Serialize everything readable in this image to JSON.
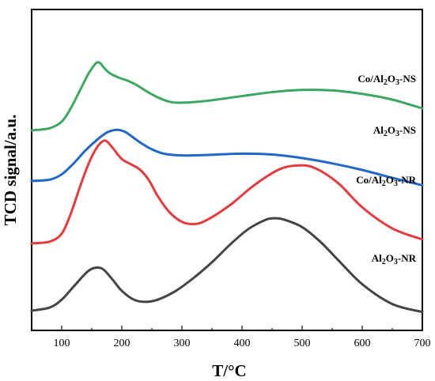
{
  "chart_data": {
    "type": "line",
    "xlabel": "T/°C",
    "ylabel": "TCD signal/a.u.",
    "xlim": [
      50,
      700
    ],
    "x_ticks": [
      100,
      200,
      300,
      400,
      500,
      600,
      700
    ],
    "x_tick_labels": [
      "100",
      "200",
      "300",
      "400",
      "500",
      "600",
      "700"
    ],
    "y_ticks_shown": false,
    "grid": false,
    "legend": "none (inline labels at right)",
    "series": [
      {
        "name": "Co/Al2O3-NS",
        "label_parts": [
          [
            "Co/Al",
            false
          ],
          [
            "2",
            true
          ],
          [
            "O",
            false
          ],
          [
            "3",
            true
          ],
          [
            "-NS",
            false
          ]
        ],
        "color": "#3aa860",
        "x": [
          50,
          80,
          100,
          115,
          130,
          145,
          155,
          160,
          165,
          170,
          180,
          195,
          210,
          225,
          240,
          260,
          280,
          300,
          340,
          400,
          450,
          500,
          550,
          600,
          650,
          700
        ],
        "y": [
          3.55,
          3.6,
          3.75,
          4.05,
          4.45,
          4.85,
          5.05,
          5.1,
          5.07,
          4.98,
          4.85,
          4.75,
          4.68,
          4.58,
          4.45,
          4.3,
          4.2,
          4.18,
          4.22,
          4.33,
          4.42,
          4.47,
          4.46,
          4.38,
          4.25,
          4.05
        ]
      },
      {
        "name": "Al2O3-NS",
        "label_parts": [
          [
            "Al",
            false
          ],
          [
            "2",
            true
          ],
          [
            "O",
            false
          ],
          [
            "3",
            true
          ],
          [
            "-NS",
            false
          ]
        ],
        "color": "#1f67c9",
        "x": [
          50,
          80,
          100,
          120,
          140,
          160,
          175,
          185,
          195,
          205,
          215,
          230,
          250,
          270,
          300,
          340,
          400,
          450,
          500,
          550,
          600,
          650,
          700
        ],
        "y": [
          2.4,
          2.43,
          2.55,
          2.8,
          3.1,
          3.35,
          3.5,
          3.55,
          3.56,
          3.52,
          3.43,
          3.28,
          3.12,
          3.02,
          2.98,
          2.99,
          3.02,
          3.0,
          2.92,
          2.8,
          2.65,
          2.47,
          2.3
        ]
      },
      {
        "name": "Co/Al2O3-NR",
        "label_parts": [
          [
            "Co/Al",
            false
          ],
          [
            "2",
            true
          ],
          [
            "O",
            false
          ],
          [
            "3",
            true
          ],
          [
            "-NR",
            false
          ]
        ],
        "color": "#e63a3e",
        "x": [
          50,
          80,
          100,
          115,
          130,
          145,
          158,
          168,
          175,
          185,
          200,
          215,
          230,
          245,
          260,
          280,
          300,
          320,
          340,
          380,
          420,
          460,
          490,
          520,
          560,
          600,
          650,
          700
        ],
        "y": [
          0.98,
          1.02,
          1.2,
          1.65,
          2.25,
          2.8,
          3.15,
          3.3,
          3.3,
          3.15,
          2.9,
          2.78,
          2.66,
          2.42,
          2.05,
          1.68,
          1.47,
          1.42,
          1.5,
          1.85,
          2.3,
          2.65,
          2.75,
          2.7,
          2.35,
          1.8,
          1.32,
          1.07
        ]
      },
      {
        "name": "Al2O3-NR",
        "label_parts": [
          [
            "Al",
            false
          ],
          [
            "2",
            true
          ],
          [
            "O",
            false
          ],
          [
            "3",
            true
          ],
          [
            "-NR",
            false
          ]
        ],
        "color": "#444444",
        "x": [
          50,
          80,
          100,
          120,
          140,
          150,
          160,
          170,
          185,
          200,
          220,
          240,
          260,
          290,
          320,
          350,
          380,
          410,
          440,
          455,
          470,
          500,
          530,
          560,
          600,
          650,
          700
        ],
        "y": [
          -0.55,
          -0.48,
          -0.3,
          0.0,
          0.3,
          0.4,
          0.43,
          0.38,
          0.15,
          -0.1,
          -0.3,
          -0.35,
          -0.3,
          -0.1,
          0.2,
          0.55,
          0.95,
          1.3,
          1.52,
          1.55,
          1.52,
          1.35,
          1.02,
          0.6,
          0.05,
          -0.4,
          -0.58
        ]
      }
    ]
  }
}
